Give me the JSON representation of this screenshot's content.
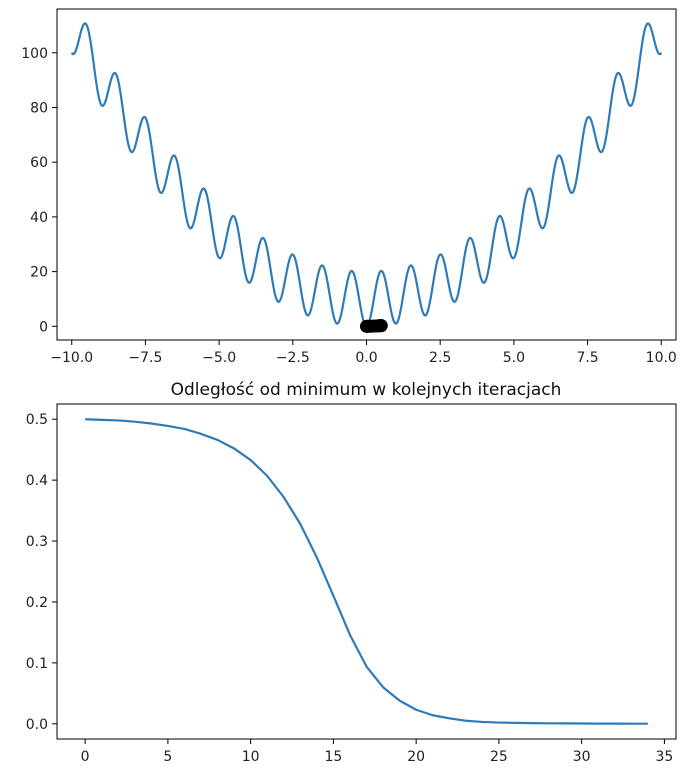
{
  "chart_data": [
    {
      "type": "line",
      "title": "",
      "xlabel": "",
      "ylabel": "",
      "xlim": [
        -10.5,
        10.5
      ],
      "ylim": [
        -5,
        116
      ],
      "xticks": [
        -10.0,
        -7.5,
        -5.0,
        -2.5,
        0.0,
        2.5,
        5.0,
        7.5,
        10.0
      ],
      "xtick_labels": [
        "−10.0",
        "−7.5",
        "−5.0",
        "−2.5",
        "0.0",
        "2.5",
        "5.0",
        "7.5",
        "10.0"
      ],
      "yticks": [
        0,
        20,
        40,
        60,
        80,
        100
      ],
      "ytick_labels": [
        "0",
        "20",
        "40",
        "60",
        "80",
        "100"
      ],
      "series": [
        {
          "function": "x^2 + 10*(1 - cos(2*pi*x))",
          "x_range": [
            -10,
            10
          ],
          "color": "#2f7bb8"
        }
      ],
      "points": {
        "color": "#000000",
        "x": [
          0.5,
          0.497,
          0.49,
          0.475,
          0.45,
          0.42,
          0.37,
          0.3,
          0.22,
          0.14,
          0.08,
          0.04,
          0.02,
          0.01,
          0.0
        ],
        "y": [
          0.25,
          0.25,
          0.25,
          0.25,
          0.2,
          0.2,
          0.15,
          0.1,
          0.05,
          0.02,
          0.01,
          0.0,
          0.0,
          0.0,
          0.0
        ]
      },
      "grid": false
    },
    {
      "type": "line",
      "title": "Odległość od minimum w kolejnych iteracjach",
      "xlabel": "",
      "ylabel": "",
      "xlim": [
        -1.7,
        35.7
      ],
      "ylim": [
        -0.025,
        0.525
      ],
      "xticks": [
        0,
        5,
        10,
        15,
        20,
        25,
        30,
        35
      ],
      "xtick_labels": [
        "0",
        "5",
        "10",
        "15",
        "20",
        "25",
        "30",
        "35"
      ],
      "yticks": [
        0.0,
        0.1,
        0.2,
        0.3,
        0.4,
        0.5
      ],
      "ytick_labels": [
        "0.0",
        "0.1",
        "0.2",
        "0.3",
        "0.4",
        "0.5"
      ],
      "series": [
        {
          "color": "#2f7bb8",
          "x": [
            0,
            1,
            2,
            3,
            4,
            5,
            6,
            7,
            8,
            9,
            10,
            11,
            12,
            13,
            14,
            15,
            16,
            17,
            18,
            19,
            20,
            21,
            22,
            23,
            24,
            25,
            26,
            27,
            28,
            29,
            30,
            31,
            32,
            33,
            34
          ],
          "y": [
            0.5,
            0.499,
            0.498,
            0.496,
            0.493,
            0.489,
            0.484,
            0.476,
            0.466,
            0.452,
            0.433,
            0.407,
            0.372,
            0.328,
            0.273,
            0.21,
            0.146,
            0.094,
            0.06,
            0.038,
            0.023,
            0.014,
            0.009,
            0.005,
            0.003,
            0.002,
            0.0015,
            0.001,
            0.0008,
            0.0006,
            0.0004,
            0.0003,
            0.0002,
            0.0001,
            0.0001
          ]
        }
      ],
      "grid": false
    }
  ]
}
